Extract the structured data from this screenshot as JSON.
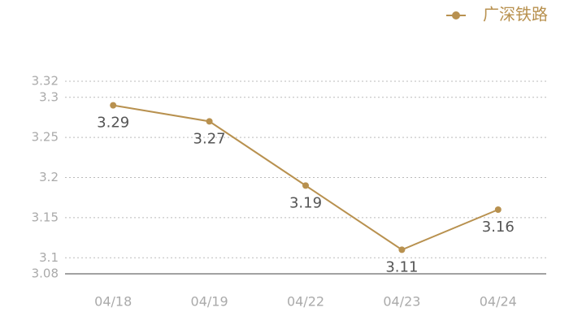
{
  "chart_data": {
    "type": "line",
    "categories": [
      "04/18",
      "04/19",
      "04/22",
      "04/23",
      "04/24"
    ],
    "series": [
      {
        "name": "广深铁路",
        "color": "#b8914f",
        "values": [
          3.29,
          3.27,
          3.19,
          3.11,
          3.16
        ]
      }
    ],
    "ylim": [
      3.08,
      3.32
    ],
    "yticks": [
      3.08,
      3.1,
      3.15,
      3.2,
      3.25,
      3.3,
      3.32
    ],
    "grid": true,
    "legend": "top-right"
  }
}
